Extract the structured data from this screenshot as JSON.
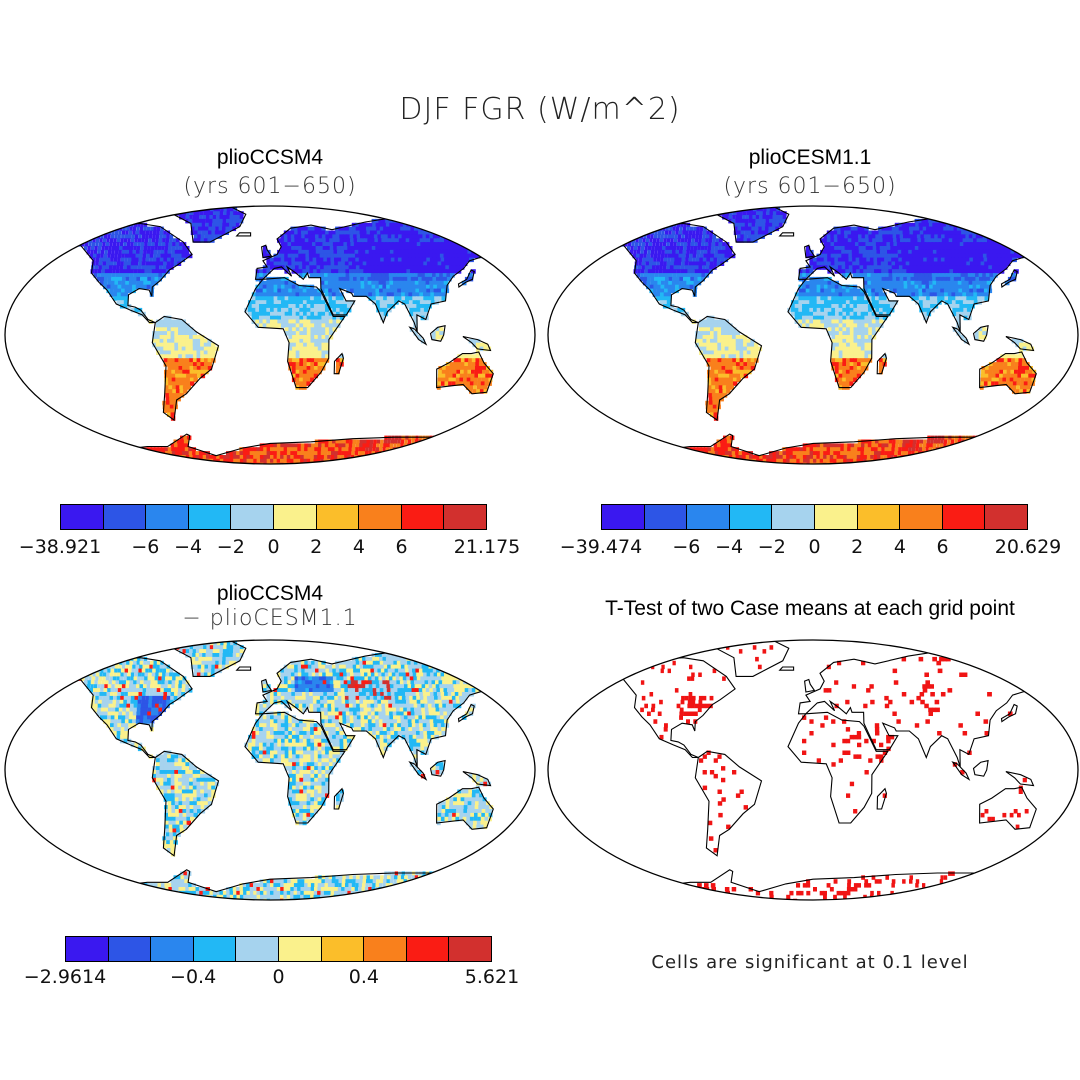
{
  "figure": {
    "title": "DJF FGR (W/m^2)",
    "colors": [
      "#3a18f0",
      "#2d55e6",
      "#2a86ee",
      "#22b8f5",
      "#a6d3ee",
      "#faf18c",
      "#fbbe2a",
      "#f9801c",
      "#fa1c14",
      "#d2302e"
    ]
  },
  "panels": [
    {
      "title": "plioCCSM4",
      "subtitle": "(yrs 601−650)",
      "colorbar": {
        "ticks": [
          "−38.921",
          "−6",
          "−4",
          "−2",
          "0",
          "2",
          "4",
          "6",
          "21.175"
        ]
      }
    },
    {
      "title": "plioCESM1.1",
      "subtitle": "(yrs 601−650)",
      "colorbar": {
        "ticks": [
          "−39.474",
          "−6",
          "−4",
          "−2",
          "0",
          "2",
          "4",
          "6",
          "20.629"
        ]
      }
    },
    {
      "title": "plioCCSM4",
      "subtitle": "− plioCESM1.1",
      "colorbar": {
        "ticks": [
          "−2.9614",
          "−0.4",
          "0",
          "0.4",
          "5.621"
        ]
      }
    },
    {
      "title": "T-Test of two Case means at each grid point",
      "note": "Cells are significant at 0.1 level"
    }
  ]
}
